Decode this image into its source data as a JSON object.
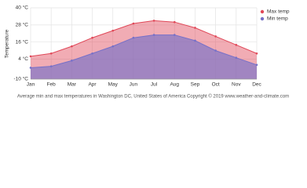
{
  "chart_data": {
    "type": "area",
    "y_label": "Temperature",
    "categories": [
      "Jan",
      "Feb",
      "Mar",
      "Apr",
      "May",
      "Jun",
      "Jul",
      "Aug",
      "Sep",
      "Oct",
      "Nov",
      "Dec"
    ],
    "series": [
      {
        "name": "Max temp",
        "color": "#e04858",
        "values": [
          6,
          8,
          13,
          19,
          24,
          29,
          31,
          30,
          26,
          20,
          14,
          8
        ]
      },
      {
        "name": "Min temp",
        "color": "#7670c8",
        "values": [
          -2,
          -1,
          3,
          8,
          13,
          19,
          21,
          21,
          17,
          10,
          5,
          0
        ]
      }
    ],
    "ylim": [
      -10,
      40
    ],
    "yticks": [
      {
        "value": -10,
        "label": "-10 °C"
      },
      {
        "value": 4,
        "label": "4 °C"
      },
      {
        "value": 16,
        "label": "16 °C"
      },
      {
        "value": 28,
        "label": "28 °C"
      },
      {
        "value": 40,
        "label": "40 °C"
      }
    ],
    "grid": true,
    "legend_position": "top-right",
    "footer": "Average min and max temperatures in Washington DC, United States of America   Copyright © 2019 www.weather-and-climate.com"
  }
}
